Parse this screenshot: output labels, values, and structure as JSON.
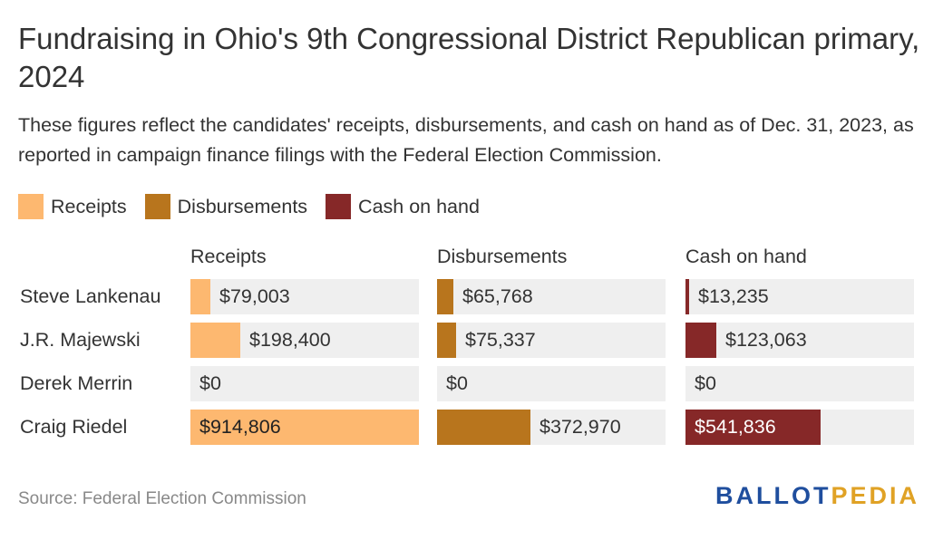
{
  "title": "Fundraising in Ohio's 9th Congressional District Republican primary, 2024",
  "subtitle": "These figures reflect the candidates' receipts, disbursements, and cash on hand as of Dec. 31, 2023, as reported in campaign finance filings with the Federal Election Commission.",
  "legend": [
    {
      "label": "Receipts",
      "color": "#fdb870"
    },
    {
      "label": "Disbursements",
      "color": "#b8751d"
    },
    {
      "label": "Cash on hand",
      "color": "#862828"
    }
  ],
  "source": "Source: Federal Election Commission",
  "logo": {
    "part1": "BALLOT",
    "part2": "PEDIA"
  },
  "chart_data": {
    "type": "bar",
    "categories": [
      "Steve Lankenau",
      "J.R. Majewski",
      "Derek Merrin",
      "Craig Riedel"
    ],
    "series": [
      {
        "name": "Receipts",
        "values": [
          79003,
          198400,
          0,
          914806
        ],
        "labels": [
          "$79,003",
          "$198,400",
          "$0",
          "$914,806"
        ],
        "color": "#fdb870"
      },
      {
        "name": "Disbursements",
        "values": [
          65768,
          75337,
          0,
          372970
        ],
        "labels": [
          "$65,768",
          "$75,337",
          "$0",
          "$372,970"
        ],
        "color": "#b8751d"
      },
      {
        "name": "Cash on hand",
        "values": [
          13235,
          123063,
          0,
          541836
        ],
        "labels": [
          "$13,235",
          "$123,063",
          "$0",
          "$541,836"
        ],
        "color": "#862828"
      }
    ],
    "xlim": [
      0,
      914806
    ]
  }
}
